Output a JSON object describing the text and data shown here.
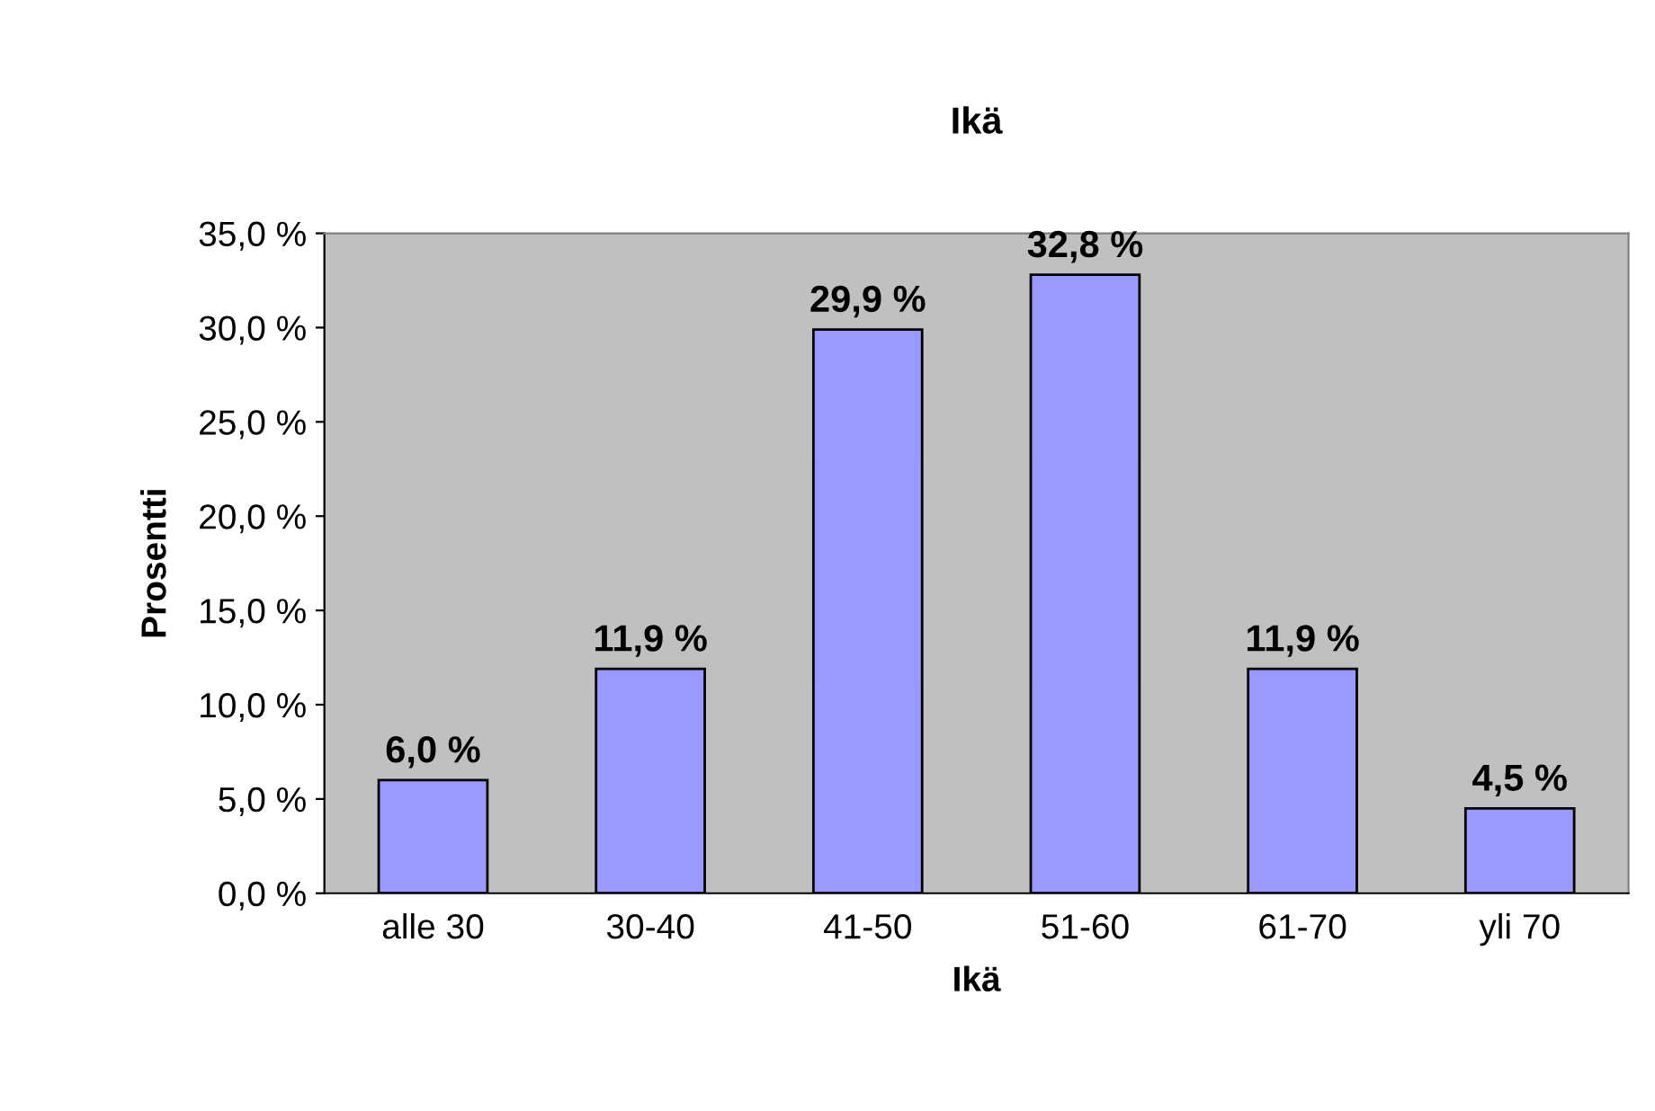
{
  "chart_data": {
    "type": "bar",
    "title": "Ikä",
    "xlabel": "Ikä",
    "ylabel": "Prosentti",
    "categories": [
      "alle 30",
      "30-40",
      "41-50",
      "51-60",
      "61-70",
      "yli 70"
    ],
    "values": [
      6.0,
      11.9,
      29.9,
      32.8,
      11.9,
      4.5
    ],
    "value_labels": [
      "6,0 %",
      "11,9 %",
      "29,9 %",
      "32,8 %",
      "11,9 %",
      "4,5 %"
    ],
    "color": "#9999ff",
    "ylim": [
      0,
      35
    ],
    "yticks": [
      {
        "value": 0,
        "label": "0,0 %"
      },
      {
        "value": 5,
        "label": "5,0 %"
      },
      {
        "value": 10,
        "label": "10,0 %"
      },
      {
        "value": 15,
        "label": "15,0 %"
      },
      {
        "value": 20,
        "label": "20,0 %"
      },
      {
        "value": 25,
        "label": "25,0 %"
      },
      {
        "value": 30,
        "label": "30,0 %"
      },
      {
        "value": 35,
        "label": "35,0 %"
      }
    ],
    "grid": false,
    "legend": false
  }
}
